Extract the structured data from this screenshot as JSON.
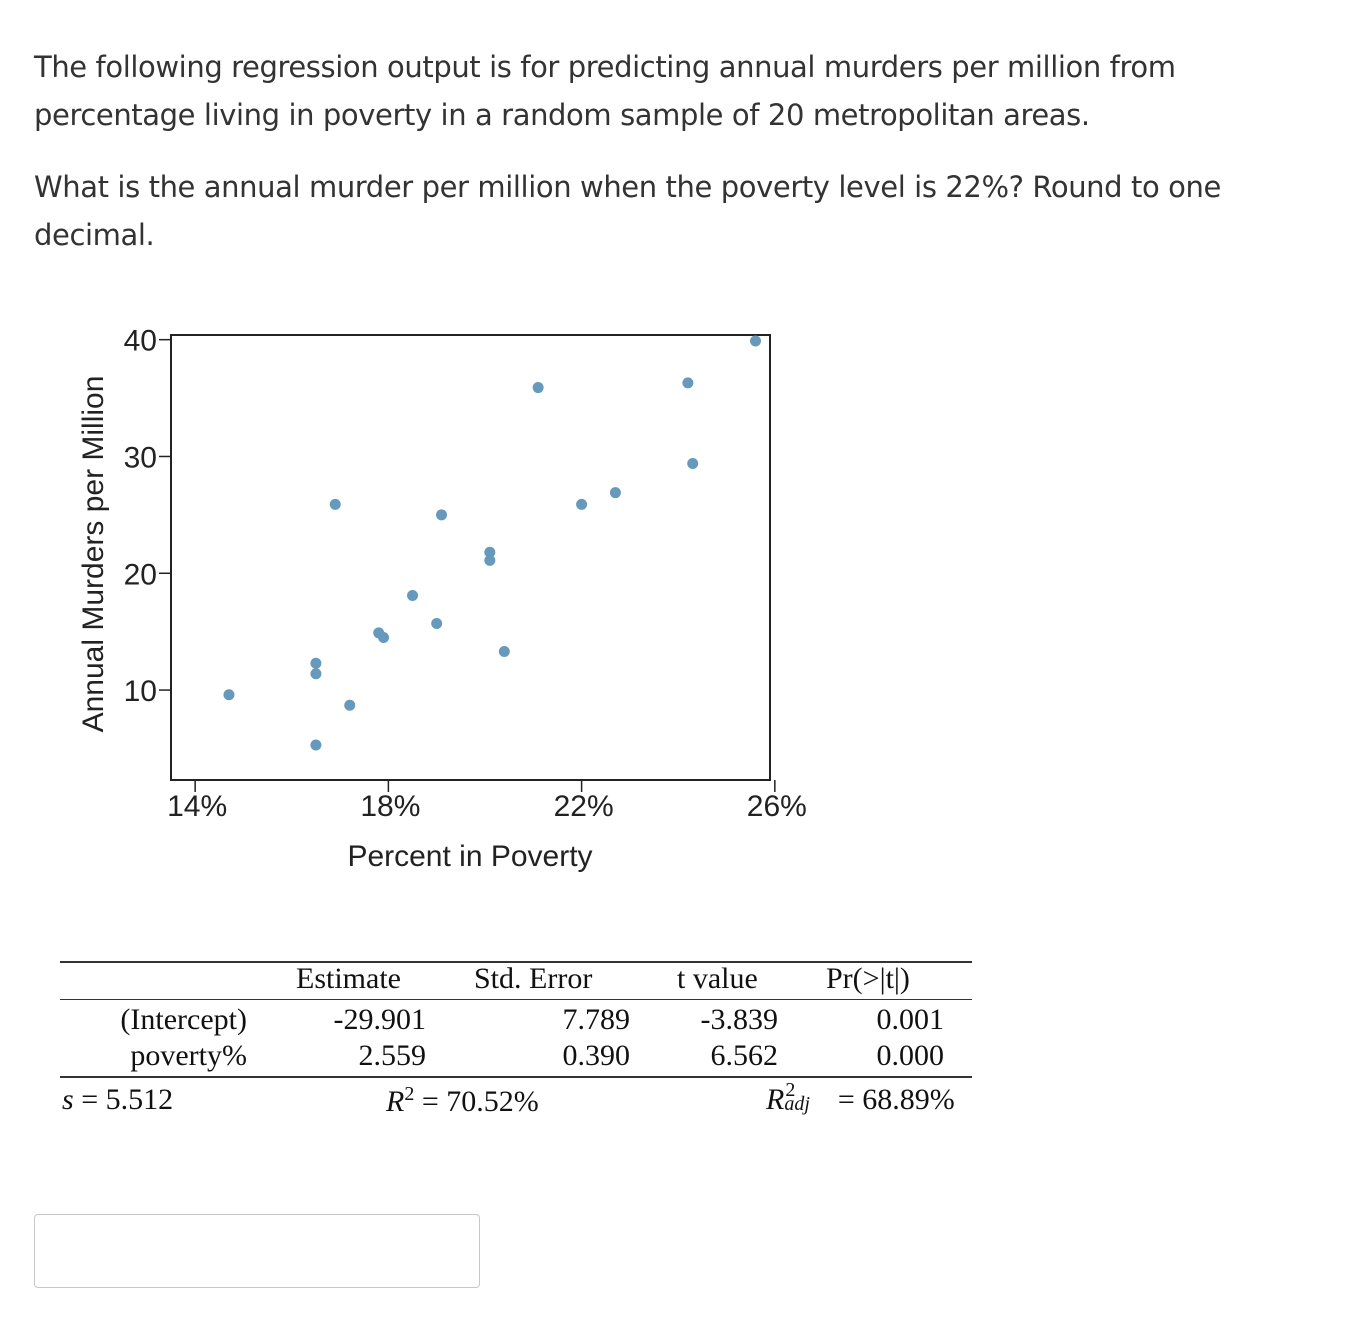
{
  "question": {
    "intro": "The following regression output is for predicting annual murders per million from percentage living in poverty in a random sample of 20 metropolitan areas.",
    "prompt": "What is the annual murder per million when the poverty level is 22%? Round to one decimal."
  },
  "chart_data": {
    "type": "scatter",
    "xlabel": "Percent in Poverty",
    "ylabel": "Annual Murders per Million",
    "x_ticks": [
      14,
      18,
      22,
      26
    ],
    "x_tick_labels": [
      "14%",
      "18%",
      "22%",
      "26%"
    ],
    "y_ticks": [
      10,
      20,
      30,
      40
    ],
    "y_tick_labels": [
      "10",
      "20",
      "30",
      "40"
    ],
    "xlim": [
      13.5,
      25.9
    ],
    "ylim": [
      2.3,
      40.4
    ],
    "grid": false,
    "point_color": "#6699bb",
    "points": [
      {
        "x": 14.7,
        "y": 9.6
      },
      {
        "x": 16.5,
        "y": 5.3
      },
      {
        "x": 16.5,
        "y": 11.4
      },
      {
        "x": 16.5,
        "y": 12.3
      },
      {
        "x": 16.9,
        "y": 25.9
      },
      {
        "x": 17.2,
        "y": 8.7
      },
      {
        "x": 17.8,
        "y": 14.9
      },
      {
        "x": 17.9,
        "y": 14.5
      },
      {
        "x": 18.5,
        "y": 18.1
      },
      {
        "x": 19.0,
        "y": 15.7
      },
      {
        "x": 19.1,
        "y": 25.0
      },
      {
        "x": 20.1,
        "y": 21.8
      },
      {
        "x": 20.1,
        "y": 21.1
      },
      {
        "x": 20.4,
        "y": 13.3
      },
      {
        "x": 21.1,
        "y": 35.9
      },
      {
        "x": 22.0,
        "y": 25.9
      },
      {
        "x": 22.7,
        "y": 26.9
      },
      {
        "x": 24.2,
        "y": 36.3
      },
      {
        "x": 24.3,
        "y": 29.4
      },
      {
        "x": 25.6,
        "y": 40.8
      }
    ]
  },
  "regression_table": {
    "headers": [
      "Estimate",
      "Std. Error",
      "t value",
      "Pr(>|t|)"
    ],
    "rows": [
      {
        "label": "(Intercept)",
        "estimate": "-29.901",
        "std_error": "7.789",
        "t_value": "-3.839",
        "p_value": "0.001"
      },
      {
        "label": "poverty%",
        "estimate": "2.559",
        "std_error": "0.390",
        "t_value": "6.562",
        "p_value": "0.000"
      }
    ],
    "footer": {
      "s_symbol": "s",
      "s_value": "= 5.512",
      "r2_symbol": "R",
      "r2_sup": "2",
      "r2_value": "= 70.52%",
      "r2adj_symbol": "R",
      "r2adj_sup": "2",
      "r2adj_sub": "adj",
      "r2adj_value": "= 68.89%"
    }
  },
  "answer": {
    "value": "",
    "placeholder": ""
  }
}
